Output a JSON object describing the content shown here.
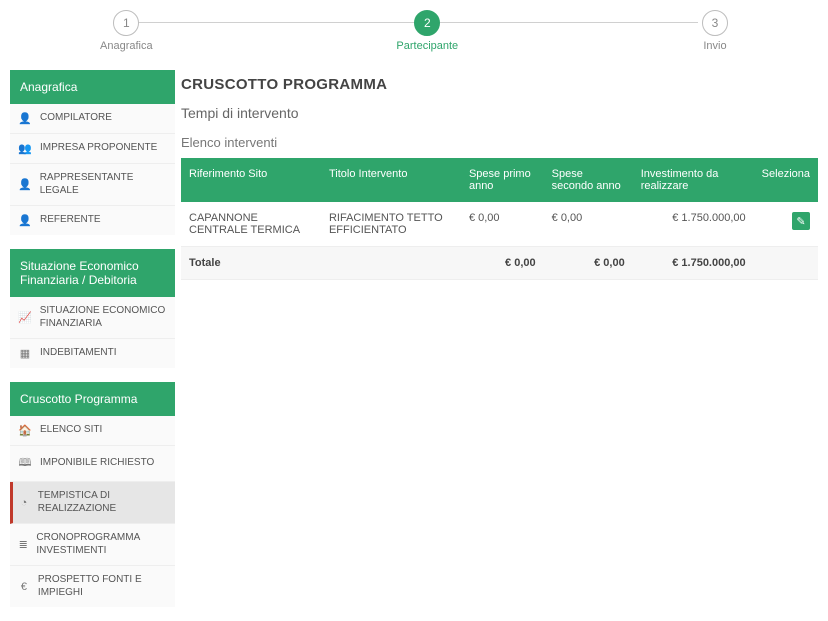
{
  "stepper": {
    "steps": [
      {
        "num": "1",
        "label": "Anagrafica",
        "state": "done"
      },
      {
        "num": "2",
        "label": "Partecipante",
        "state": "active"
      },
      {
        "num": "3",
        "label": "Invio",
        "state": "todo"
      }
    ]
  },
  "sidebar": {
    "sections": [
      {
        "header": "Anagrafica",
        "items": [
          {
            "icon": "user-icon",
            "label": "COMPILATORE",
            "active": false
          },
          {
            "icon": "users-icon",
            "label": "IMPRESA PROPONENTE",
            "active": false
          },
          {
            "icon": "user-icon",
            "label": "RAPPRESENTANTE LEGALE",
            "active": false
          },
          {
            "icon": "user-icon",
            "label": "REFERENTE",
            "active": false
          }
        ]
      },
      {
        "header": "Situazione Economico Finanziaria / Debitoria",
        "items": [
          {
            "icon": "chart-icon",
            "label": "SITUAZIONE ECONOMICO FINANZIARIA",
            "active": false
          },
          {
            "icon": "table-icon",
            "label": "INDEBITAMENTI",
            "active": false
          }
        ]
      },
      {
        "header": "Cruscotto Programma",
        "items": [
          {
            "icon": "home-icon",
            "label": "ELENCO SITI",
            "active": false
          },
          {
            "icon": "book-icon",
            "label": "IMPONIBILE RICHIESTO",
            "active": false
          },
          {
            "icon": "clock-icon",
            "label": "TEMPISTICA DI REALIZZAZIONE",
            "active": true
          },
          {
            "icon": "list-icon",
            "label": "CRONOPROGRAMMA INVESTIMENTI",
            "active": false
          },
          {
            "icon": "euro-icon",
            "label": "PROSPETTO FONTI E IMPIEGHI",
            "active": false
          }
        ]
      }
    ]
  },
  "content": {
    "page_title": "CRUSCOTTO PROGRAMMA",
    "section_title": "Tempi di intervento",
    "sub_title": "Elenco interventi",
    "table": {
      "headers": {
        "rif": "Riferimento Sito",
        "titolo": "Titolo Intervento",
        "spese1": "Spese primo anno",
        "spese2": "Spese secondo anno",
        "inv": "Investimento da realizzare",
        "sel": "Seleziona"
      },
      "rows": [
        {
          "rif": "CAPANNONE CENTRALE TERMICA",
          "titolo": "RIFACIMENTO TETTO EFFICIENTATO",
          "spese1": "€ 0,00",
          "spese2": "€ 0,00",
          "inv": "€ 1.750.000,00"
        }
      ],
      "total": {
        "label": "Totale",
        "spese1": "€ 0,00",
        "spese2": "€ 0,00",
        "inv": "€ 1.750.000,00"
      }
    }
  },
  "icons": {
    "user-icon": "👤",
    "users-icon": "👥",
    "chart-icon": "📈",
    "table-icon": "▦",
    "home-icon": "🏠",
    "book-icon": "🕮",
    "clock-icon": "◔",
    "list-icon": "≣",
    "euro-icon": "€",
    "edit-icon": "✎"
  },
  "colors": {
    "accent": "#2fa56b",
    "active_border": "#c0392b"
  }
}
